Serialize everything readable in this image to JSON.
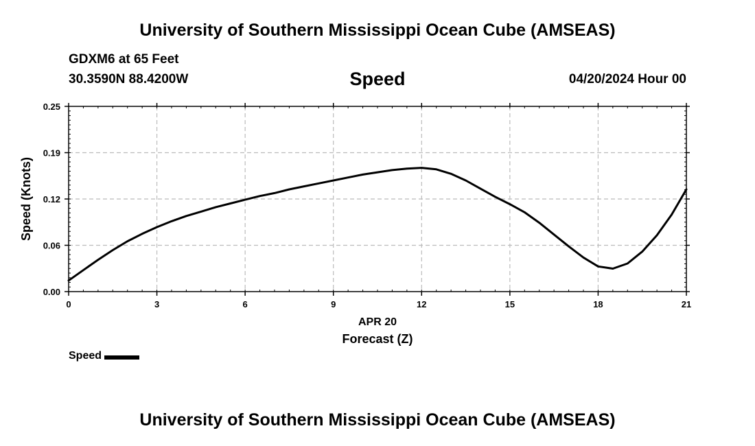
{
  "header": {
    "title": "University of Southern Mississippi Ocean Cube (AMSEAS)",
    "station": "GDXM6 at 65 Feet",
    "coords": "30.3590N  88.4200W",
    "variable": "Speed",
    "datetime": "04/20/2024 Hour 00"
  },
  "footer": {
    "title": "University of Southern Mississippi Ocean Cube (AMSEAS)"
  },
  "legend": {
    "label": "Speed"
  },
  "chart_data": {
    "type": "line",
    "title": "Speed",
    "xlabel": "Forecast (Z)",
    "xlabel_date": "APR 20",
    "ylabel": "Speed (Knots)",
    "xlim": [
      0,
      21
    ],
    "ylim": [
      0,
      0.25
    ],
    "xticks": [
      0,
      3,
      6,
      9,
      12,
      15,
      18,
      21
    ],
    "xtick_labels": [
      "0",
      "3",
      "6",
      "9",
      "12",
      "15",
      "18",
      "21"
    ],
    "yticks": [
      0.0,
      0.0625,
      0.125,
      0.1875,
      0.25
    ],
    "ytick_labels": [
      "0.00",
      "0.06",
      "0.12",
      "0.19",
      "0.25"
    ],
    "grid": true,
    "series": [
      {
        "name": "Speed",
        "color": "#000000",
        "x": [
          0,
          0.5,
          1,
          1.5,
          2,
          2.5,
          3,
          3.5,
          4,
          4.5,
          5,
          5.5,
          6,
          6.5,
          7,
          7.5,
          8,
          8.5,
          9,
          9.5,
          10,
          10.5,
          11,
          11.5,
          12,
          12.5,
          13,
          13.5,
          14,
          14.5,
          15,
          15.5,
          16,
          16.5,
          17,
          17.5,
          18,
          18.5,
          19,
          19.5,
          20,
          20.5,
          21
        ],
        "values": [
          0.015,
          0.029,
          0.043,
          0.056,
          0.068,
          0.078,
          0.087,
          0.095,
          0.102,
          0.108,
          0.114,
          0.119,
          0.124,
          0.129,
          0.133,
          0.138,
          0.142,
          0.146,
          0.15,
          0.154,
          0.158,
          0.161,
          0.164,
          0.166,
          0.167,
          0.165,
          0.159,
          0.15,
          0.139,
          0.128,
          0.118,
          0.107,
          0.093,
          0.077,
          0.061,
          0.046,
          0.034,
          0.031,
          0.038,
          0.054,
          0.076,
          0.104,
          0.138
        ]
      }
    ]
  }
}
